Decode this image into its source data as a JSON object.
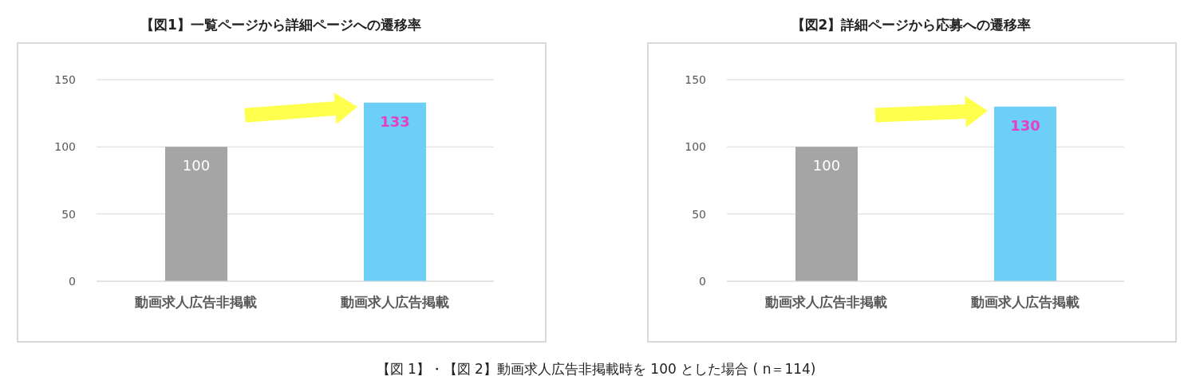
{
  "chart_data": [
    {
      "type": "bar",
      "title": "【図1】一覧ページから詳細ページへの遷移率",
      "categories": [
        "動画求人広告非掲載",
        "動画求人広告掲載"
      ],
      "values": [
        100,
        133
      ],
      "colors": [
        "#a5a5a5",
        "#6dcff6"
      ],
      "ylim": [
        0,
        150
      ],
      "yticks": [
        0,
        50,
        100,
        150
      ],
      "grid": "y",
      "data_labels": true,
      "annotations": [
        "【図 1】・【図 2】動画求人広告非掲載時を 100 とした場合 ( n＝114)"
      ]
    },
    {
      "type": "bar",
      "title": "【図2】詳細ページから応募への遷移率",
      "categories": [
        "動画求人広告非掲載",
        "動画求人広告掲載"
      ],
      "values": [
        100,
        130
      ],
      "colors": [
        "#a5a5a5",
        "#6dcff6"
      ],
      "ylim": [
        0,
        150
      ],
      "yticks": [
        0,
        50,
        100,
        150
      ],
      "grid": "y",
      "data_labels": true
    }
  ]
}
